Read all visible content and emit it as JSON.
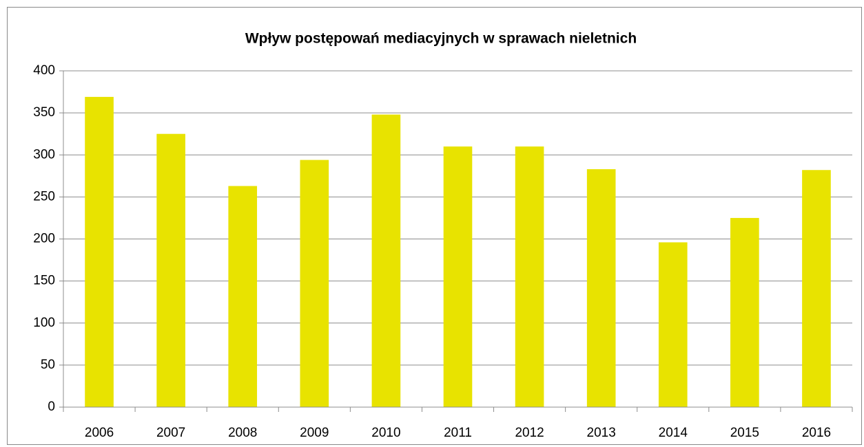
{
  "chart_data": {
    "type": "bar",
    "title": "Wpływ postępowań mediacyjnych w sprawach nieletnich",
    "categories": [
      "2006",
      "2007",
      "2008",
      "2009",
      "2010",
      "2011",
      "2012",
      "2013",
      "2014",
      "2015",
      "2016"
    ],
    "values": [
      369,
      325,
      263,
      294,
      348,
      310,
      310,
      283,
      196,
      225,
      282
    ],
    "color": "#e8e300",
    "ylim": [
      0,
      400
    ],
    "yticks": [
      0,
      50,
      100,
      150,
      200,
      250,
      300,
      350,
      400
    ],
    "grid": true
  }
}
